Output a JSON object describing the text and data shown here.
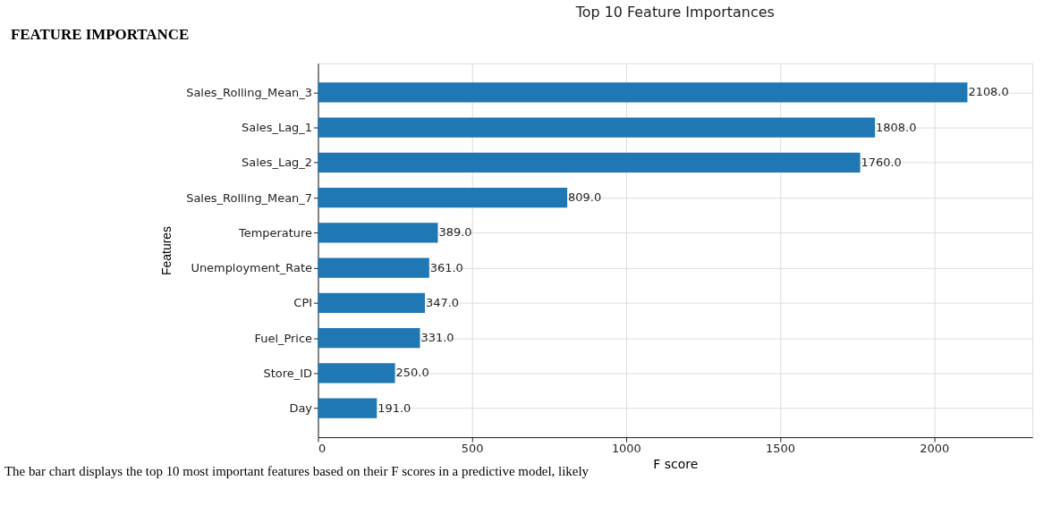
{
  "chart_data": {
    "type": "bar",
    "orientation": "horizontal",
    "title": "Top 10 Feature Importances",
    "xlabel": "F score",
    "ylabel": "Features",
    "categories": [
      "Sales_Rolling_Mean_3",
      "Sales_Lag_1",
      "Sales_Lag_2",
      "Sales_Rolling_Mean_7",
      "Temperature",
      "Unemployment_Rate",
      "CPI",
      "Fuel_Price",
      "Store_ID",
      "Day"
    ],
    "values": [
      2108,
      1808,
      1760,
      809,
      389,
      361,
      347,
      331,
      250,
      191
    ],
    "value_labels": [
      "2108.0",
      "1808.0",
      "1760.0",
      "809.0",
      "389.0",
      "361.0",
      "347.0",
      "331.0",
      "250.0",
      "191.0"
    ],
    "color": "#1f77b4",
    "xlim": [
      0,
      2319
    ],
    "xticks": [
      0,
      500,
      1000,
      1500,
      2000
    ],
    "grid": true,
    "annotations": [
      "FEATURE IMPORTANCE",
      "The bar chart displays the top 10 most important features based on their F scores in a predictive model, likely"
    ]
  }
}
